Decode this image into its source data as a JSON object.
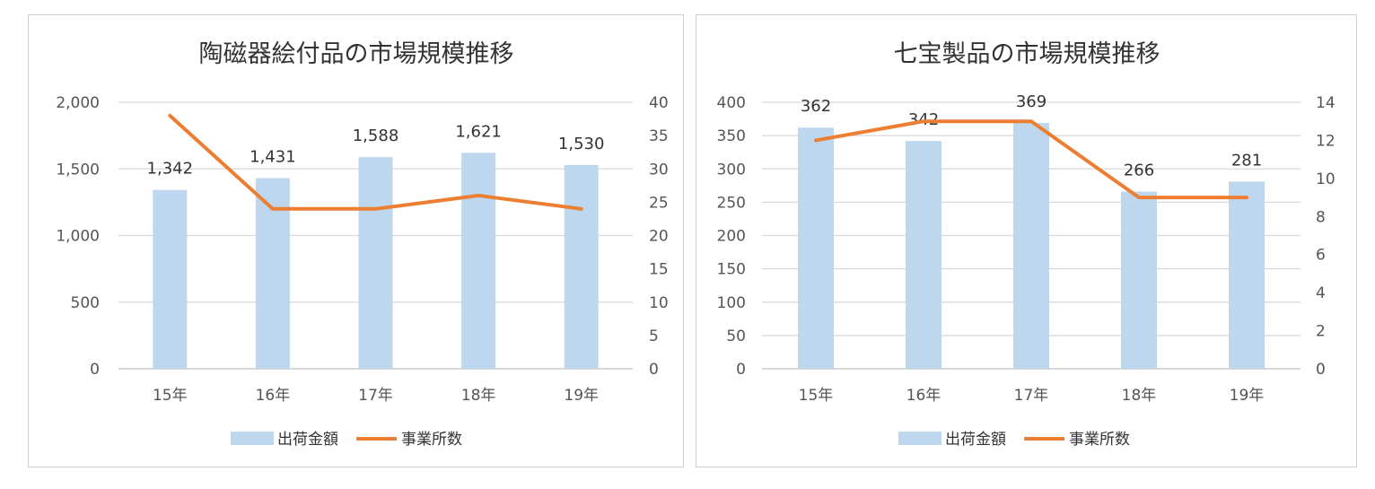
{
  "chart_data": [
    {
      "type": "bar",
      "title": "陶磁器絵付品の市場規模推移",
      "categories": [
        "15年",
        "16年",
        "17年",
        "18年",
        "19年"
      ],
      "series": [
        {
          "name": "出荷金額",
          "type": "bar",
          "axis": "left",
          "values": [
            1342,
            1431,
            1588,
            1621,
            1530
          ],
          "color": "#bdd7ee"
        },
        {
          "name": "事業所数",
          "type": "line",
          "axis": "right",
          "values": [
            38,
            24,
            24,
            26,
            24
          ],
          "color": "#ed7d31"
        }
      ],
      "data_labels": [
        "1,342",
        "1,431",
        "1,588",
        "1,621",
        "1,530"
      ],
      "y_left": {
        "min": 0,
        "max": 2000,
        "ticks": [
          "0",
          "500",
          "1,000",
          "1,500",
          "2,000"
        ]
      },
      "y_right": {
        "min": 0,
        "max": 40,
        "ticks": [
          "0",
          "5",
          "10",
          "15",
          "20",
          "25",
          "30",
          "35",
          "40"
        ]
      },
      "grid": true,
      "legend": "bottom"
    },
    {
      "type": "bar",
      "title": "七宝製品の市場規模推移",
      "categories": [
        "15年",
        "16年",
        "17年",
        "18年",
        "19年"
      ],
      "series": [
        {
          "name": "出荷金額",
          "type": "bar",
          "axis": "left",
          "values": [
            362,
            342,
            369,
            266,
            281
          ],
          "color": "#bdd7ee"
        },
        {
          "name": "事業所数",
          "type": "line",
          "axis": "right",
          "values": [
            12,
            13,
            13,
            9,
            9
          ],
          "color": "#ed7d31"
        }
      ],
      "data_labels": [
        "362",
        "342",
        "369",
        "266",
        "281"
      ],
      "y_left": {
        "min": 0,
        "max": 400,
        "ticks": [
          "0",
          "50",
          "100",
          "150",
          "200",
          "250",
          "300",
          "350",
          "400"
        ]
      },
      "y_right": {
        "min": 0,
        "max": 14,
        "ticks": [
          "0",
          "2",
          "4",
          "6",
          "8",
          "10",
          "12",
          "14"
        ]
      },
      "grid": true,
      "legend": "bottom"
    }
  ]
}
